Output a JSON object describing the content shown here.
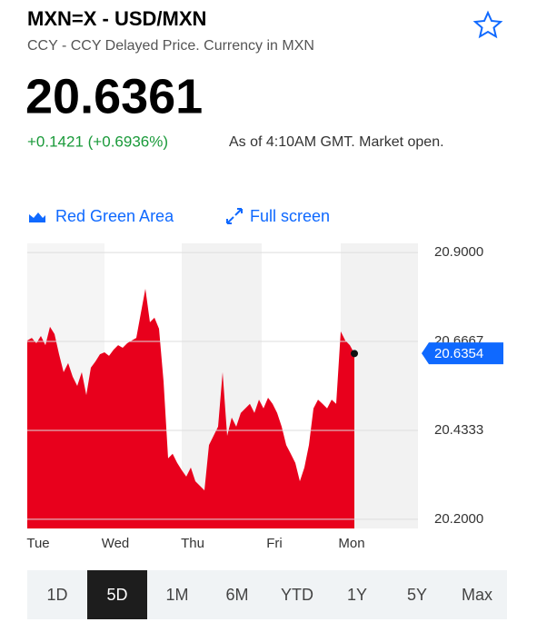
{
  "header": {
    "title": "MXN=X - USD/MXN",
    "subtitle": "CCY - CCY Delayed Price. Currency in MXN"
  },
  "quote": {
    "price": "20.6361",
    "change": "+0.1421 (+0.6936%)",
    "status": "As of 4:10AM GMT. Market open."
  },
  "toolbar": {
    "chart_style": "Red Green Area",
    "fullscreen": "Full screen"
  },
  "chart_data": {
    "type": "area",
    "color": "#e8001c",
    "grid": true,
    "categories": [
      "Tue",
      null,
      null,
      null,
      null,
      null,
      null,
      null,
      null,
      null,
      null,
      null,
      null,
      null,
      null,
      null,
      null,
      "Wed",
      null,
      null,
      null,
      null,
      null,
      null,
      null,
      null,
      null,
      null,
      null,
      null,
      null,
      null,
      null,
      null,
      "Thu",
      null,
      null,
      null,
      null,
      null,
      null,
      null,
      null,
      null,
      null,
      null,
      null,
      null,
      null,
      null,
      null,
      null,
      "Fri",
      null,
      null,
      null,
      null,
      null,
      null,
      null,
      null,
      null,
      null,
      null,
      null,
      null,
      null,
      null,
      null,
      "Mon",
      null,
      null,
      null
    ],
    "values": [
      20.669,
      20.676,
      20.662,
      20.681,
      20.657,
      20.705,
      20.686,
      20.633,
      20.586,
      20.61,
      20.574,
      20.55,
      20.586,
      20.526,
      20.598,
      20.614,
      20.633,
      20.638,
      20.629,
      20.645,
      20.657,
      20.65,
      20.662,
      20.669,
      20.676,
      20.741,
      20.805,
      20.717,
      20.729,
      20.7,
      20.562,
      20.36,
      20.372,
      20.348,
      20.329,
      20.312,
      20.336,
      20.3,
      20.288,
      20.276,
      20.395,
      20.419,
      20.443,
      20.586,
      20.419,
      20.467,
      20.443,
      20.479,
      20.491,
      20.503,
      20.479,
      20.514,
      20.491,
      20.519,
      20.503,
      20.479,
      20.443,
      20.395,
      20.372,
      20.348,
      20.3,
      20.336,
      20.395,
      20.491,
      20.514,
      20.503,
      20.491,
      20.514,
      20.503,
      20.693,
      20.669,
      20.657,
      20.635
    ],
    "ylim": [
      20.176,
      20.924
    ],
    "yticks": [
      {
        "value": 20.2,
        "label": "20.2000"
      },
      {
        "value": 20.4333,
        "label": "20.4333"
      },
      {
        "value": 20.6667,
        "label": "20.6667"
      },
      {
        "value": 20.9,
        "label": "20.9000"
      }
    ],
    "last_price": 20.6354
  },
  "tabs": [
    "1D",
    "5D",
    "1M",
    "6M",
    "YTD",
    "1Y",
    "5Y",
    "Max"
  ]
}
